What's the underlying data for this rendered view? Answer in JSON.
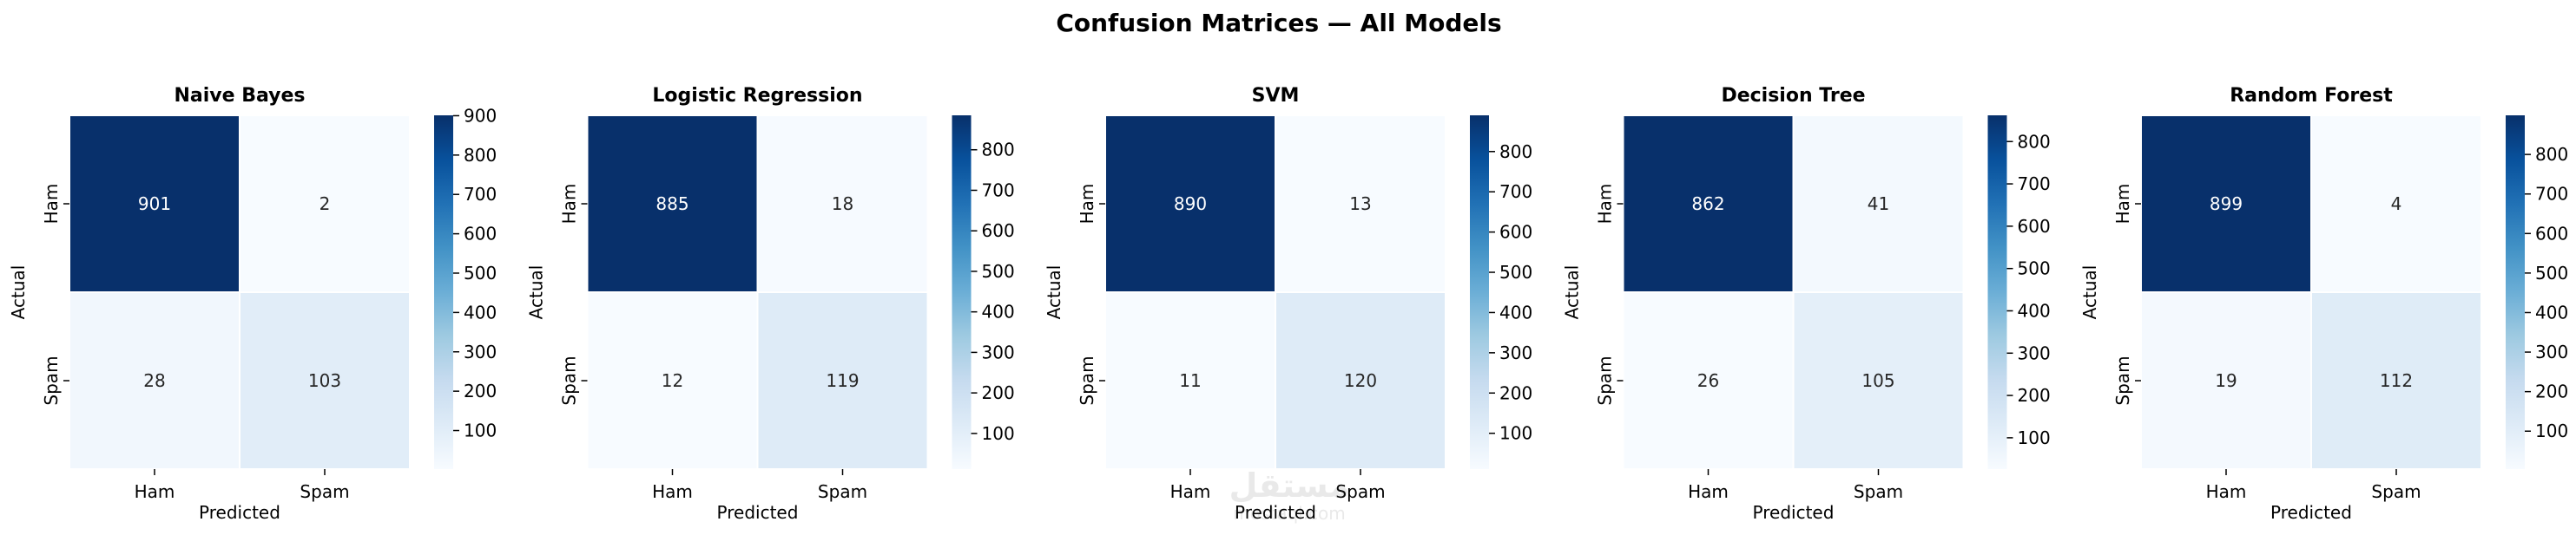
{
  "figure_title": "Confusion Matrices — All Models",
  "watermark": {
    "text": "مستقل",
    "subtext": "mostaql.com"
  },
  "colors": {
    "low": "#f7fbff",
    "high": "#08306b"
  },
  "chart_data": [
    {
      "type": "heatmap",
      "title": "Naive Bayes",
      "xlabel": "Predicted",
      "ylabel": "Actual",
      "x_categories": [
        "Ham",
        "Spam"
      ],
      "y_categories": [
        "Ham",
        "Spam"
      ],
      "values": [
        [
          901,
          2
        ],
        [
          28,
          103
        ]
      ],
      "colorbar_range": [
        2,
        901
      ],
      "colorbar_ticks": [
        100,
        200,
        300,
        400,
        500,
        600,
        700,
        800,
        900
      ],
      "colormap": "Blues"
    },
    {
      "type": "heatmap",
      "title": "Logistic Regression",
      "xlabel": "Predicted",
      "ylabel": "Actual",
      "x_categories": [
        "Ham",
        "Spam"
      ],
      "y_categories": [
        "Ham",
        "Spam"
      ],
      "values": [
        [
          885,
          18
        ],
        [
          12,
          119
        ]
      ],
      "colorbar_range": [
        12,
        885
      ],
      "colorbar_ticks": [
        100,
        200,
        300,
        400,
        500,
        600,
        700,
        800
      ],
      "colormap": "Blues"
    },
    {
      "type": "heatmap",
      "title": "SVM",
      "xlabel": "Predicted",
      "ylabel": "Actual",
      "x_categories": [
        "Ham",
        "Spam"
      ],
      "y_categories": [
        "Ham",
        "Spam"
      ],
      "values": [
        [
          890,
          13
        ],
        [
          11,
          120
        ]
      ],
      "colorbar_range": [
        11,
        890
      ],
      "colorbar_ticks": [
        100,
        200,
        300,
        400,
        500,
        600,
        700,
        800
      ],
      "colormap": "Blues"
    },
    {
      "type": "heatmap",
      "title": "Decision Tree",
      "xlabel": "Predicted",
      "ylabel": "Actual",
      "x_categories": [
        "Ham",
        "Spam"
      ],
      "y_categories": [
        "Ham",
        "Spam"
      ],
      "values": [
        [
          862,
          41
        ],
        [
          26,
          105
        ]
      ],
      "colorbar_range": [
        26,
        862
      ],
      "colorbar_ticks": [
        100,
        200,
        300,
        400,
        500,
        600,
        700,
        800
      ],
      "colormap": "Blues"
    },
    {
      "type": "heatmap",
      "title": "Random Forest",
      "xlabel": "Predicted",
      "ylabel": "Actual",
      "x_categories": [
        "Ham",
        "Spam"
      ],
      "y_categories": [
        "Ham",
        "Spam"
      ],
      "values": [
        [
          899,
          4
        ],
        [
          19,
          112
        ]
      ],
      "colorbar_range": [
        4,
        899
      ],
      "colorbar_ticks": [
        100,
        200,
        300,
        400,
        500,
        600,
        700,
        800
      ],
      "colormap": "Blues"
    }
  ]
}
